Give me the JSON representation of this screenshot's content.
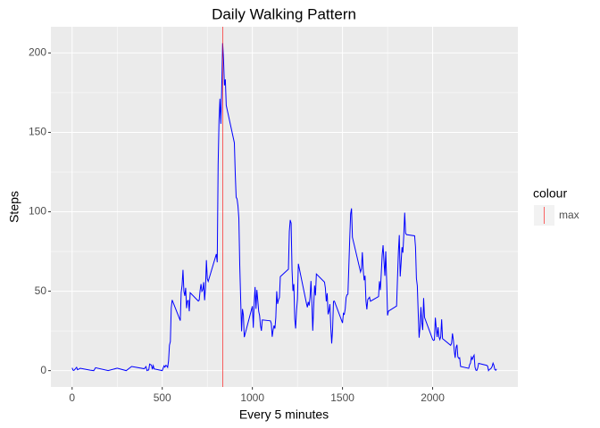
{
  "chart_data": {
    "type": "line",
    "title": "Daily Walking Pattern",
    "x_label": "Every 5 minutes",
    "y_label": "Steps",
    "x": [
      0,
      5,
      10,
      25,
      30,
      45,
      100,
      120,
      130,
      200,
      250,
      300,
      330,
      400,
      410,
      415,
      420,
      425,
      430,
      440,
      445,
      450,
      455,
      500,
      505,
      510,
      515,
      520,
      525,
      530,
      535,
      540,
      545,
      550,
      555,
      600,
      605,
      610,
      615,
      620,
      625,
      630,
      635,
      640,
      645,
      650,
      655,
      700,
      705,
      710,
      715,
      720,
      725,
      730,
      735,
      740,
      745,
      750,
      755,
      800,
      805,
      810,
      815,
      820,
      825,
      830,
      835,
      840,
      845,
      850,
      855,
      900,
      905,
      910,
      915,
      920,
      925,
      930,
      935,
      940,
      945,
      950,
      955,
      1000,
      1005,
      1010,
      1015,
      1020,
      1025,
      1030,
      1035,
      1040,
      1045,
      1050,
      1055,
      1100,
      1105,
      1110,
      1115,
      1120,
      1125,
      1130,
      1135,
      1140,
      1145,
      1150,
      1155,
      1200,
      1205,
      1210,
      1215,
      1220,
      1225,
      1230,
      1235,
      1240,
      1245,
      1250,
      1255,
      1300,
      1305,
      1310,
      1315,
      1320,
      1325,
      1330,
      1335,
      1340,
      1345,
      1350,
      1355,
      1400,
      1405,
      1410,
      1415,
      1420,
      1425,
      1430,
      1435,
      1440,
      1445,
      1450,
      1455,
      1500,
      1505,
      1510,
      1515,
      1520,
      1525,
      1530,
      1535,
      1540,
      1545,
      1550,
      1555,
      1600,
      1605,
      1610,
      1615,
      1620,
      1625,
      1630,
      1635,
      1640,
      1645,
      1650,
      1655,
      1700,
      1705,
      1710,
      1715,
      1720,
      1725,
      1730,
      1735,
      1740,
      1745,
      1750,
      1755,
      1800,
      1805,
      1810,
      1815,
      1820,
      1825,
      1830,
      1835,
      1840,
      1845,
      1850,
      1855,
      1900,
      1905,
      1910,
      1915,
      1920,
      1925,
      1930,
      1935,
      1940,
      1945,
      1950,
      1955,
      2000,
      2005,
      2010,
      2015,
      2020,
      2025,
      2030,
      2035,
      2040,
      2045,
      2050,
      2055,
      2100,
      2105,
      2110,
      2115,
      2120,
      2125,
      2130,
      2135,
      2140,
      2145,
      2150,
      2155,
      2200,
      2205,
      2210,
      2215,
      2220,
      2225,
      2230,
      2235,
      2240,
      2245,
      2250,
      2255,
      2300,
      2305,
      2310,
      2315,
      2320,
      2325,
      2330,
      2335,
      2340,
      2345,
      2350,
      2355
    ],
    "values": [
      1.72,
      0.34,
      0.13,
      2.09,
      0.53,
      1.47,
      0.32,
      0,
      1.83,
      0,
      1.55,
      0,
      2.62,
      1.19,
      2.57,
      0,
      0.34,
      0.36,
      4.11,
      3.49,
      0.83,
      3.11,
      1.11,
      0,
      1.57,
      3,
      2.25,
      3.32,
      2.96,
      2.09,
      6.06,
      16,
      18.3,
      39.45,
      44.49,
      31.49,
      49.26,
      53.77,
      63.45,
      49.96,
      47.08,
      52.15,
      39.34,
      44.02,
      44.17,
      37.36,
      49.04,
      43.81,
      44.38,
      50.51,
      54.51,
      49.92,
      50.98,
      55.68,
      44.32,
      52.26,
      69.55,
      57.85,
      56.15,
      73.38,
      68.21,
      129.43,
      157.53,
      171.15,
      155.4,
      177.3,
      206.17,
      195.92,
      179.57,
      183.4,
      167.02,
      143.45,
      124.04,
      109.11,
      108.11,
      103.72,
      95.97,
      66.21,
      45.23,
      24.79,
      38.75,
      34.98,
      21.06,
      40.57,
      26.98,
      42.42,
      52.66,
      38.93,
      50.79,
      44.28,
      37.41,
      34.7,
      28.34,
      25.09,
      31.94,
      31.36,
      29.68,
      21.32,
      25.55,
      28.38,
      26.47,
      33.43,
      49.98,
      42.03,
      44.6,
      46.03,
      59.19,
      63.87,
      87.7,
      94.85,
      92.77,
      63.4,
      50.17,
      54.47,
      32.42,
      26.53,
      37.74,
      45.06,
      67.28,
      42.34,
      39.88,
      43.26,
      40.98,
      46.25,
      56.43,
      42.75,
      25.13,
      39.96,
      53.55,
      47.32,
      60.81,
      55.75,
      51.96,
      43.58,
      48.7,
      35.47,
      37.55,
      41.85,
      27.51,
      17.11,
      26.08,
      43.62,
      43.77,
      30.02,
      36.08,
      35.49,
      38.85,
      45.96,
      47.75,
      48.13,
      65.32,
      82.91,
      98.66,
      102.11,
      83.96,
      62.13,
      64.13,
      74.55,
      63.17,
      56.91,
      59.77,
      43.87,
      38.57,
      44.66,
      45.45,
      46.21,
      43.68,
      46.62,
      56.3,
      50.72,
      61.23,
      72.72,
      78.94,
      68.94,
      59.66,
      75.09,
      56.51,
      34.77,
      37.45,
      40.68,
      58.02,
      74.7,
      85.32,
      59.26,
      67.77,
      77.7,
      74.25,
      85.34,
      99.45,
      86.58,
      85.6,
      84.87,
      77.83,
      58.04,
      53.36,
      36.32,
      20.72,
      27.4,
      40.02,
      30.21,
      25.55,
      45.66,
      33.53,
      19.62,
      19.02,
      19.34,
      33.34,
      26.81,
      21.17,
      27.3,
      21.34,
      19.55,
      21.32,
      32.3,
      20.15,
      15.94,
      17.23,
      23.45,
      19.25,
      12.45,
      8.02,
      14.66,
      16.3,
      8.68,
      7.79,
      8.13,
      2.62,
      1.45,
      3.68,
      4.81,
      8.51,
      7.08,
      8.7,
      9.75,
      2.21,
      0.32,
      0.11,
      1.6,
      4.6,
      3.3,
      2.85,
      0,
      0.83,
      0.96,
      1.58,
      2.6,
      4.7,
      3.3,
      0.64,
      0.23,
      1.08
    ],
    "color": "blue",
    "vline": {
      "x": 835,
      "label": "max",
      "color": "red"
    },
    "legend_title": "colour",
    "xlim": [
      -117.75,
      2472.75
    ],
    "xticks": [
      0,
      500,
      1000,
      1500,
      2000
    ],
    "ylim": [
      -10.3,
      216.5
    ],
    "yticks": [
      0,
      50,
      100,
      150,
      200
    ],
    "grid": true
  }
}
